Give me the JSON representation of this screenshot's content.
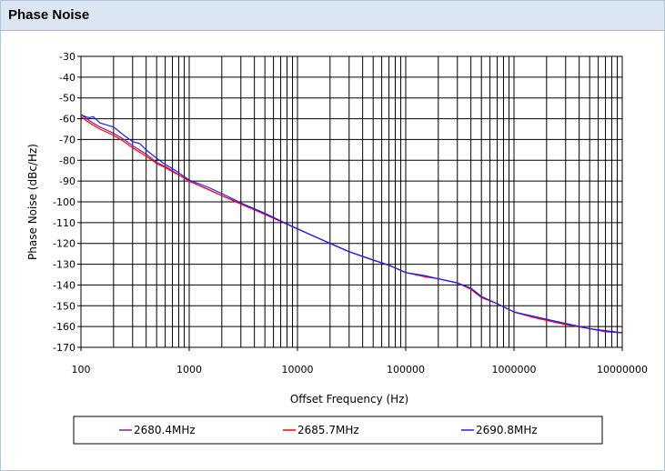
{
  "panel": {
    "title": "Phase Noise"
  },
  "chart_data": {
    "type": "line",
    "title": "",
    "xlabel": "Offset Frequency (Hz)",
    "ylabel": "Phase Noise (dBc/Hz)",
    "xscale": "log",
    "xlim": [
      100,
      10000000
    ],
    "ylim": [
      -170,
      -30
    ],
    "x_ticks": [
      "100",
      "1000",
      "10000",
      "100000",
      "1000000",
      "10000000"
    ],
    "y_ticks": [
      "-30",
      "-40",
      "-50",
      "-60",
      "-70",
      "-80",
      "-90",
      "-100",
      "-110",
      "-120",
      "-130",
      "-140",
      "-150",
      "-160",
      "-170"
    ],
    "grid": true,
    "legend_position": "bottom",
    "series": [
      {
        "name": "2680.4MHz",
        "color": "#8b1a8b",
        "points": [
          [
            100,
            -58
          ],
          [
            120,
            -61
          ],
          [
            150,
            -64
          ],
          [
            200,
            -67
          ],
          [
            250,
            -70
          ],
          [
            300,
            -73
          ],
          [
            400,
            -77
          ],
          [
            500,
            -81
          ],
          [
            600,
            -83
          ],
          [
            700,
            -85
          ],
          [
            800,
            -87
          ],
          [
            1000,
            -90
          ],
          [
            1500,
            -94
          ],
          [
            2000,
            -97
          ],
          [
            3000,
            -101
          ],
          [
            5000,
            -106
          ],
          [
            10000,
            -113
          ],
          [
            20000,
            -120
          ],
          [
            30000,
            -124
          ],
          [
            50000,
            -128
          ],
          [
            70000,
            -130.5
          ],
          [
            100000,
            -134
          ],
          [
            150000,
            -136
          ],
          [
            200000,
            -137
          ],
          [
            300000,
            -139
          ],
          [
            400000,
            -142
          ],
          [
            500000,
            -146
          ],
          [
            700000,
            -149
          ],
          [
            1000000,
            -153
          ],
          [
            1500000,
            -155.5
          ],
          [
            2000000,
            -157
          ],
          [
            3000000,
            -159
          ],
          [
            5000000,
            -161
          ],
          [
            7000000,
            -162.5
          ],
          [
            10000000,
            -163
          ]
        ]
      },
      {
        "name": "2685.7MHz",
        "color": "#ff0000",
        "points": [
          [
            100,
            -59
          ],
          [
            120,
            -62
          ],
          [
            150,
            -65
          ],
          [
            200,
            -68
          ],
          [
            250,
            -71
          ],
          [
            300,
            -74
          ],
          [
            400,
            -78
          ],
          [
            500,
            -81.5
          ],
          [
            600,
            -83.5
          ],
          [
            700,
            -85.5
          ],
          [
            800,
            -87
          ],
          [
            1000,
            -90
          ],
          [
            1500,
            -94
          ],
          [
            2000,
            -97
          ],
          [
            3000,
            -101
          ],
          [
            5000,
            -106
          ],
          [
            10000,
            -113
          ],
          [
            20000,
            -120
          ],
          [
            30000,
            -124
          ],
          [
            50000,
            -128
          ],
          [
            70000,
            -130.5
          ],
          [
            100000,
            -134
          ],
          [
            150000,
            -136
          ],
          [
            200000,
            -137
          ],
          [
            300000,
            -139
          ],
          [
            400000,
            -142
          ],
          [
            500000,
            -146
          ],
          [
            700000,
            -149
          ],
          [
            1000000,
            -153
          ],
          [
            1500000,
            -155.5
          ],
          [
            2000000,
            -157
          ],
          [
            3000000,
            -159
          ],
          [
            5000000,
            -161
          ],
          [
            7000000,
            -162
          ],
          [
            10000000,
            -163
          ]
        ]
      },
      {
        "name": "2690.8MHz",
        "color": "#1a1aff",
        "points": [
          [
            100,
            -58
          ],
          [
            110,
            -59
          ],
          [
            120,
            -59.5
          ],
          [
            130,
            -59
          ],
          [
            150,
            -62
          ],
          [
            200,
            -64
          ],
          [
            250,
            -68
          ],
          [
            300,
            -71
          ],
          [
            350,
            -72
          ],
          [
            400,
            -75
          ],
          [
            500,
            -79
          ],
          [
            600,
            -82
          ],
          [
            700,
            -84
          ],
          [
            800,
            -86
          ],
          [
            1000,
            -89.5
          ],
          [
            1500,
            -93
          ],
          [
            2000,
            -96
          ],
          [
            3000,
            -100.5
          ],
          [
            5000,
            -105.5
          ],
          [
            10000,
            -113
          ],
          [
            20000,
            -120
          ],
          [
            30000,
            -124
          ],
          [
            50000,
            -128
          ],
          [
            70000,
            -130.5
          ],
          [
            100000,
            -134
          ],
          [
            150000,
            -135.5
          ],
          [
            200000,
            -137
          ],
          [
            300000,
            -139
          ],
          [
            400000,
            -141.5
          ],
          [
            500000,
            -145.5
          ],
          [
            700000,
            -149
          ],
          [
            1000000,
            -153
          ],
          [
            1500000,
            -155
          ],
          [
            2000000,
            -156.5
          ],
          [
            3000000,
            -158.5
          ],
          [
            5000000,
            -161
          ],
          [
            7000000,
            -162
          ],
          [
            10000000,
            -163
          ]
        ]
      }
    ]
  }
}
